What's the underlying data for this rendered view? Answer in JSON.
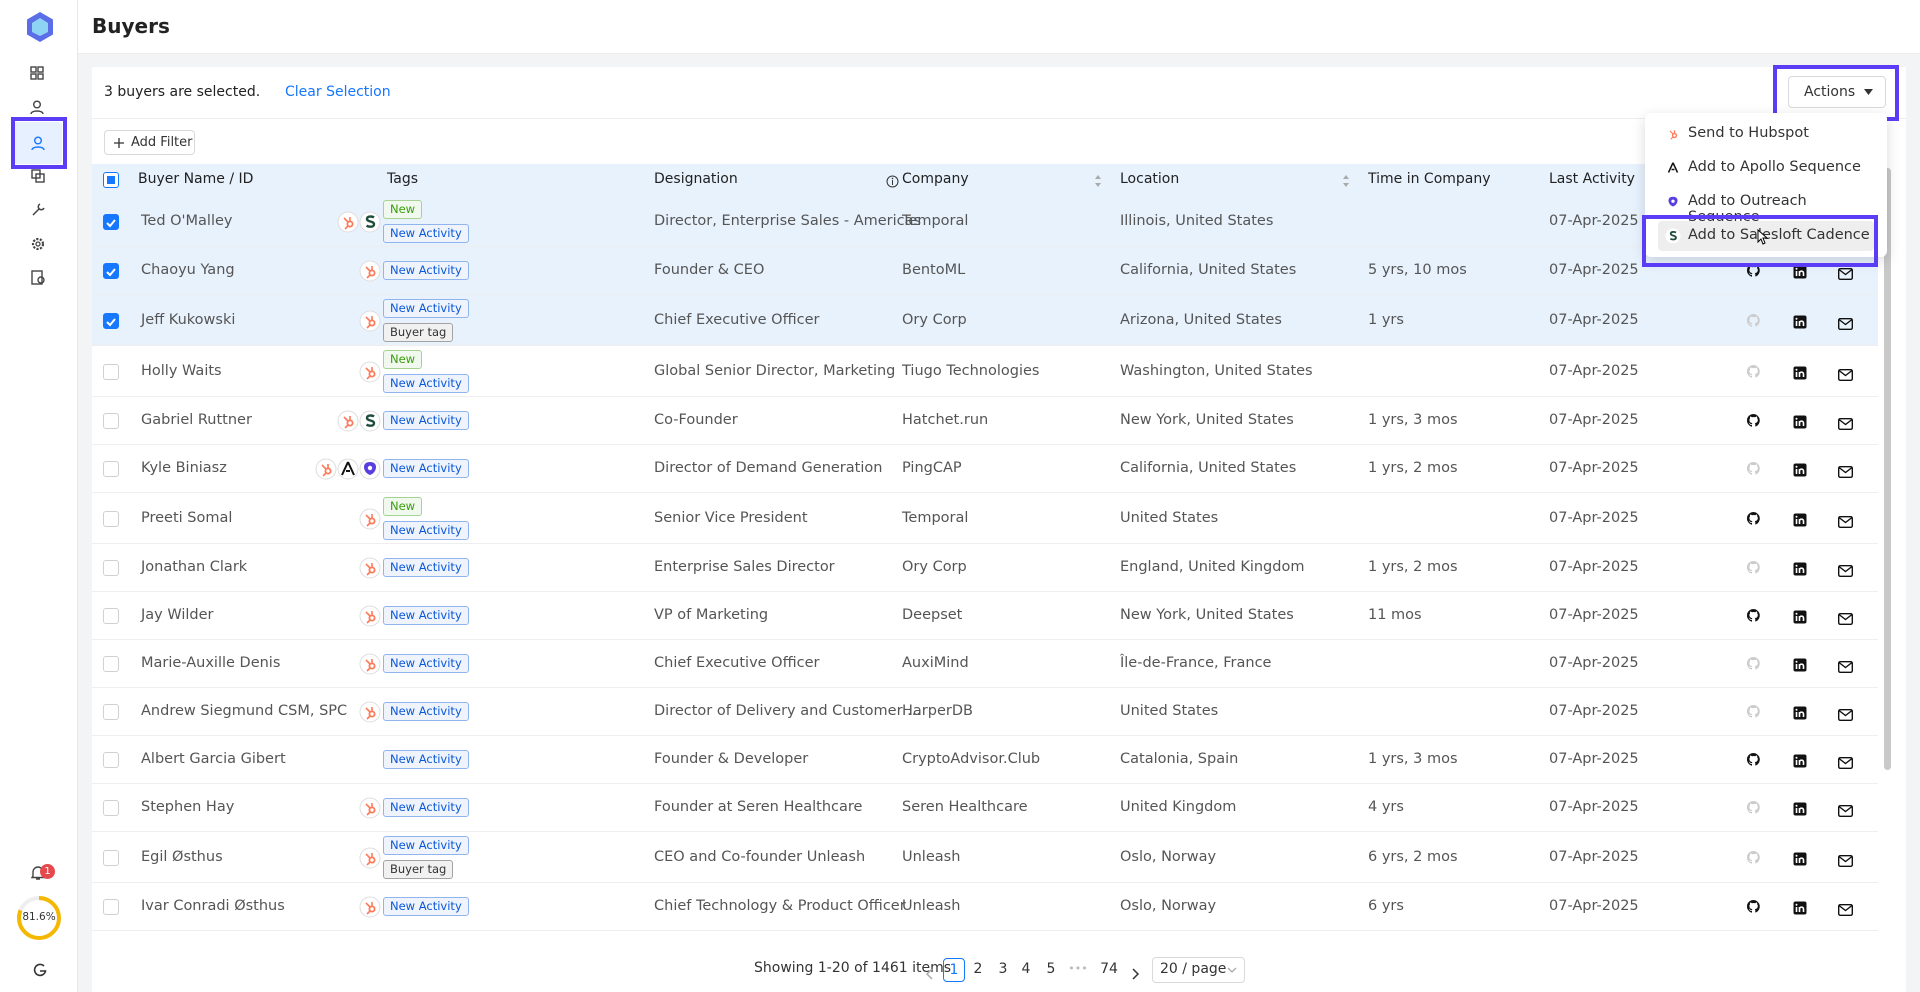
{
  "header": {
    "title": "Buyers"
  },
  "selection": {
    "text": "3 buyers are selected.",
    "clear": "Clear Selection"
  },
  "actions": {
    "label": "Actions"
  },
  "add_filter": "Add Filter",
  "table": {
    "columns": [
      "Buyer Name / ID",
      "Tags",
      "Designation",
      "Company",
      "Location",
      "Time in Company",
      "Last Activity"
    ],
    "rows": [
      {
        "name": "Ted O'Malley",
        "tags": [
          {
            "label": "New",
            "color": "#389e0d"
          },
          {
            "label": "New Activity",
            "color": "#0958d9"
          }
        ],
        "designation": "Director, Enterprise Sales - Americas",
        "company": "Temporal",
        "location": "Illinois, United States",
        "last_activity": "07-Apr-2025"
      },
      {
        "name": "Chaoyu Yang",
        "tags": [
          {
            "label": "New Activity",
            "color": "#0958d9"
          }
        ],
        "designation": "Founder & CEO",
        "company": "BentoML",
        "location": "California, United States",
        "time": "5 yrs, 10 mos",
        "last_activity": "07-Apr-2025"
      },
      {
        "name": "Jeff Kukowski",
        "tags": [
          {
            "label": "New Activity",
            "color": "#0958d9"
          },
          {
            "label": "Buyer tag",
            "color": "#333333"
          }
        ],
        "designation": "Chief Executive Officer",
        "company": "Ory Corp",
        "location": "Arizona, United States",
        "time": "1 yrs",
        "last_activity": "07-Apr-2025"
      },
      {
        "name": "Holly Waits",
        "tags": [
          {
            "label": "New",
            "color": "#389e0d"
          },
          {
            "label": "New Activity",
            "color": "#0958d9"
          }
        ],
        "designation": "Global Senior Director, Marketing",
        "company": "Tiugo Technologies",
        "location": "Washington, United States",
        "last_activity": "07-Apr-2025"
      },
      {
        "name": "Gabriel Ruttner",
        "tags": [
          {
            "label": "New Activity",
            "color": "#0958d9"
          }
        ],
        "designation": "Co-Founder",
        "company": "Hatchet.run",
        "location": "New York, United States",
        "time": "1 yrs, 3 mos",
        "last_activity": "07-Apr-2025"
      },
      {
        "name": "Kyle Biniasz",
        "tags": [
          {
            "label": "New Activity",
            "color": "#0958d9"
          }
        ],
        "designation": "Director of Demand Generation",
        "company": "PingCAP",
        "location": "California, United States",
        "time": "1 yrs, 2 mos",
        "last_activity": "07-Apr-2025"
      },
      {
        "name": "Preeti Somal",
        "tags": [
          {
            "label": "New",
            "color": "#389e0d"
          },
          {
            "label": "New Activity",
            "color": "#0958d9"
          }
        ],
        "designation": "Senior Vice President",
        "company": "Temporal",
        "location": "United States",
        "last_activity": "07-Apr-2025"
      },
      {
        "name": "Jonathan Clark",
        "tags": [
          {
            "label": "New Activity",
            "color": "#0958d9"
          }
        ],
        "designation": "Enterprise Sales Director",
        "company": "Ory Corp",
        "location": "England, United Kingdom",
        "time": "1 yrs, 2 mos",
        "last_activity": "07-Apr-2025"
      },
      {
        "name": "Jay Wilder",
        "tags": [
          {
            "label": "New Activity",
            "color": "#0958d9"
          }
        ],
        "designation": "VP of Marketing",
        "company": "Deepset",
        "location": "New York, United States",
        "time": "11 mos",
        "last_activity": "07-Apr-2025"
      },
      {
        "name": "Marie-Auxille Denis",
        "tags": [
          {
            "label": "New Activity",
            "color": "#0958d9"
          }
        ],
        "designation": "Chief Executive Officer",
        "company": "AuxiMind",
        "location": "Île-de-France, France",
        "last_activity": "07-Apr-2025"
      },
      {
        "name": "Andrew Siegmund CSM, SPC",
        "tags": [
          {
            "label": "New Activity",
            "color": "#0958d9"
          }
        ],
        "designation": "Director of Delivery and Customer ...",
        "company": "HarperDB",
        "location": "United States",
        "last_activity": "07-Apr-2025"
      },
      {
        "name": "Albert Garcia Gibert",
        "tags": [
          {
            "label": "New Activity",
            "color": "#0958d9"
          }
        ],
        "designation": "Founder & Developer",
        "company": "CryptoAdvisor.Club",
        "location": "Catalonia, Spain",
        "time": "1 yrs, 3 mos",
        "last_activity": "07-Apr-2025"
      },
      {
        "name": "Stephen Hay",
        "tags": [
          {
            "label": "New Activity",
            "color": "#0958d9"
          }
        ],
        "designation": "Founder at Seren Healthcare",
        "company": "Seren Healthcare",
        "location": "United Kingdom",
        "time": "4 yrs",
        "last_activity": "07-Apr-2025"
      },
      {
        "name": "Egil Østhus",
        "tags": [
          {
            "label": "New Activity",
            "color": "#0958d9"
          },
          {
            "label": "Buyer tag",
            "color": "#333333"
          }
        ],
        "designation": "CEO and Co-founder Unleash",
        "company": "Unleash",
        "location": "Oslo, Norway",
        "time": "6 yrs, 2 mos",
        "last_activity": "07-Apr-2025"
      },
      {
        "name": "Ivar Conradi Østhus",
        "tags": [
          {
            "label": "New Activity",
            "color": "#0958d9"
          }
        ],
        "designation": "Chief Technology & Product Officer",
        "company": "Unleash",
        "location": "Oslo, Norway",
        "time": "6 yrs",
        "last_activity": "07-Apr-2025"
      }
    ]
  },
  "menu": {
    "items": [
      "Send to Hubspot",
      "Add to Apollo Sequence",
      "Add to Outreach Sequence",
      "Add to Salesloft Cadence"
    ]
  },
  "pagination": {
    "summary": "Showing 1-20 of 1461 items",
    "pages": [
      "1",
      "2",
      "3",
      "4",
      "5",
      "74"
    ],
    "ellipsis": "•••",
    "page_size": "20 / page"
  },
  "sidebar": {
    "badge": "1",
    "progress": "81.6%"
  }
}
